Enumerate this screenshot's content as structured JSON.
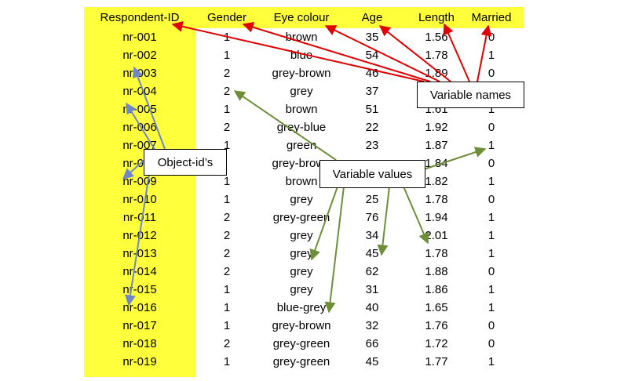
{
  "columns": [
    "Respondent-ID",
    "Gender",
    "Eye colour",
    "Age",
    "Length",
    "Married"
  ],
  "rows": [
    [
      "nr-001",
      "1",
      "brown",
      "35",
      "1.56",
      "0"
    ],
    [
      "nr-002",
      "1",
      "blue",
      "54",
      "1.78",
      "1"
    ],
    [
      "nr-003",
      "2",
      "grey-brown",
      "46",
      "1.89",
      "0"
    ],
    [
      "nr-004",
      "2",
      "grey",
      "37",
      "",
      ""
    ],
    [
      "nr-005",
      "1",
      "brown",
      "51",
      "1.61",
      "1"
    ],
    [
      "nr-006",
      "2",
      "grey-blue",
      "22",
      "1.92",
      "0"
    ],
    [
      "nr-007",
      "1",
      "green",
      "23",
      "1.87",
      "1"
    ],
    [
      "nr-008",
      "",
      "grey-brown",
      "",
      "1.84",
      "0"
    ],
    [
      "nr-009",
      "1",
      "brown",
      "",
      "1.82",
      "1"
    ],
    [
      "nr-010",
      "1",
      "grey",
      "25",
      "1.78",
      "0"
    ],
    [
      "nr-011",
      "2",
      "grey-green",
      "76",
      "1.94",
      "1"
    ],
    [
      "nr-012",
      "2",
      "grey",
      "34",
      "2.01",
      "1"
    ],
    [
      "nr-013",
      "2",
      "grey",
      "45",
      "1.78",
      "1"
    ],
    [
      "nr-014",
      "2",
      "grey",
      "62",
      "1.88",
      "0"
    ],
    [
      "nr-015",
      "1",
      "grey",
      "31",
      "1.86",
      "1"
    ],
    [
      "nr-016",
      "1",
      "blue-grey",
      "40",
      "1.65",
      "1"
    ],
    [
      "nr-017",
      "1",
      "grey-brown",
      "32",
      "1.76",
      "0"
    ],
    [
      "nr-018",
      "2",
      "grey-green",
      "66",
      "1.72",
      "0"
    ],
    [
      "nr-019",
      "1",
      "grey-green",
      "45",
      "1.77",
      "1"
    ]
  ],
  "callouts": {
    "variable_names": "Variable names",
    "object_ids": "Object-id’s",
    "variable_values": "Variable values"
  },
  "colors": {
    "highlight": "#ffff3b",
    "names_arrow": "#e00000",
    "ids_arrow": "#6f86c9",
    "values_arrow": "#6e8e3a"
  }
}
